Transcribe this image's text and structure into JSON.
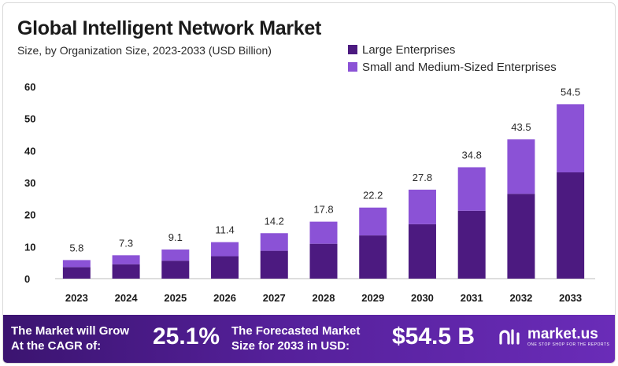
{
  "header": {
    "title": "Global Intelligent Network Market",
    "subtitle": "Size, by Organization Size, 2023-2033  (USD Billion)"
  },
  "chart_data": {
    "type": "bar",
    "stacked": true,
    "categories": [
      "2023",
      "2024",
      "2025",
      "2026",
      "2027",
      "2028",
      "2029",
      "2030",
      "2031",
      "2032",
      "2033"
    ],
    "series": [
      {
        "name": "Large Enterprises",
        "color": "#4c1a80",
        "values": [
          3.6,
          4.5,
          5.6,
          7.0,
          8.7,
          10.9,
          13.5,
          17.0,
          21.2,
          26.5,
          33.2
        ]
      },
      {
        "name": "Small and Medium-Sized Enterprises",
        "color": "#8b52d6",
        "values": [
          2.2,
          2.8,
          3.5,
          4.4,
          5.5,
          6.9,
          8.7,
          10.8,
          13.6,
          17.0,
          21.3
        ]
      }
    ],
    "totals": [
      5.8,
      7.3,
      9.1,
      11.4,
      14.2,
      17.8,
      22.2,
      27.8,
      34.8,
      43.5,
      54.5
    ],
    "total_labels": [
      "5.8",
      "7.3",
      "9.1",
      "11.4",
      "14.2",
      "17.8",
      "22.2",
      "27.8",
      "34.8",
      "43.5",
      "54.5"
    ],
    "yticks": [
      0,
      10,
      20,
      30,
      40,
      50,
      60
    ],
    "ylim": [
      0,
      60
    ],
    "xlabel": "",
    "ylabel": "",
    "grid": false,
    "legend": "top-right"
  },
  "footer": {
    "cagr_text_line1": "The Market will Grow",
    "cagr_text_line2": "At the CAGR of:",
    "cagr_value": "25.1%",
    "forecast_text_line1": "The Forecasted Market",
    "forecast_text_line2": "Size for 2033 in USD:",
    "forecast_value": "$54.5 B",
    "brand_name": "market.us",
    "brand_tagline": "ONE STOP SHOP FOR THE REPORTS"
  }
}
